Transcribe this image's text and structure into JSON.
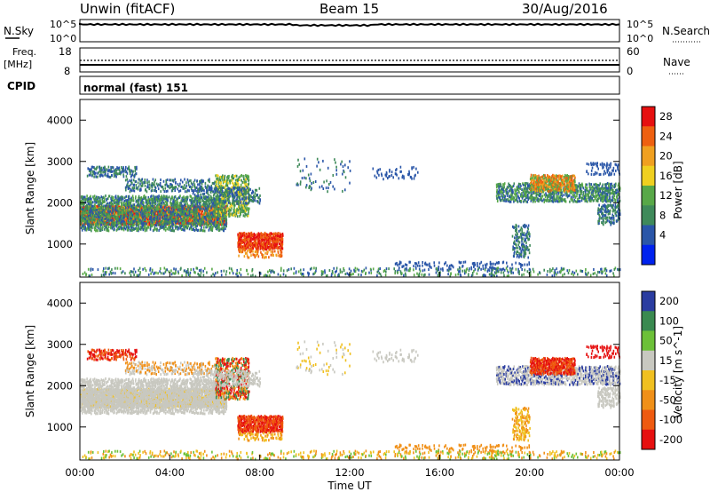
{
  "header": {
    "station": "Unwin (fitACF)",
    "beam": "Beam 15",
    "date": "30/Aug/2016"
  },
  "panels": {
    "nsky": {
      "label": "N.Sky",
      "left_ticks": [
        "10^5",
        "10^0"
      ],
      "right_ticks": [
        "10^5",
        "10^0"
      ],
      "right_label": "N.Search"
    },
    "freq": {
      "label_top": "Freq.",
      "label_unit": "[MHz]",
      "left_ticks": [
        "18",
        "8"
      ],
      "right_ticks": [
        "60",
        "0"
      ],
      "right_label": "Nave"
    },
    "cpid": {
      "label": "CPID",
      "text": "normal (fast) 151"
    }
  },
  "colors": {
    "power_scale": [
      "#0022ee",
      "#2a56a8",
      "#3f8a5a",
      "#58a848",
      "#f0d020",
      "#f0a020",
      "#ee6010",
      "#e61010"
    ],
    "velocity_scale": [
      "#e61010",
      "#ee5a10",
      "#f09018",
      "#f0c020",
      "#c8c8c0",
      "#6cc038",
      "#3a8a50",
      "#2a3ca0"
    ]
  },
  "chart_data": [
    {
      "type": "heatmap",
      "name": "power",
      "ylabel": "Slant Range [km]",
      "y_ticks": [
        "4000",
        "3000",
        "2000",
        "1000"
      ],
      "ylim": [
        200,
        4500
      ],
      "x_range_hours": [
        0,
        24
      ],
      "colorbar": {
        "label": "Power [dB]",
        "ticks": [
          "28",
          "24",
          "20",
          "16",
          "12",
          "8",
          "4"
        ],
        "range": [
          0,
          30
        ]
      }
    },
    {
      "type": "heatmap",
      "name": "velocity",
      "ylabel": "Slant Range [km]",
      "y_ticks": [
        "4000",
        "3000",
        "2000",
        "1000"
      ],
      "ylim": [
        200,
        4500
      ],
      "x_range_hours": [
        0,
        24
      ],
      "colorbar": {
        "label": "Velocity [m s^-1]",
        "ticks": [
          "200",
          "100",
          "50",
          "15",
          "-15",
          "-50",
          "-100",
          "-200"
        ]
      }
    }
  ],
  "x_axis": {
    "tick_labels": [
      "00:00",
      "04:00",
      "08:00",
      "12:00",
      "16:00",
      "20:00",
      "00:00"
    ],
    "label": "Time UT"
  }
}
